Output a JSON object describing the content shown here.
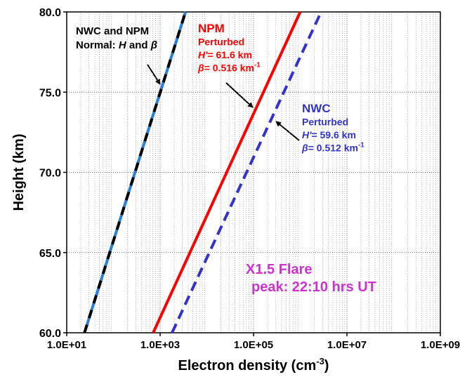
{
  "chart_data": {
    "type": "line",
    "x_scale": "log",
    "xlim": [
      10,
      1000000000
    ],
    "xticks": [
      {
        "value": 10,
        "label": "1.0E+01"
      },
      {
        "value": 1000,
        "label": "1.0E+03"
      },
      {
        "value": 100000,
        "label": "1.0E+05"
      },
      {
        "value": 10000000,
        "label": "1.0E+07"
      },
      {
        "value": 1000000000,
        "label": "1.0E+09"
      }
    ],
    "ylim": [
      60,
      80
    ],
    "yticks": [
      {
        "value": 60,
        "label": "60.0"
      },
      {
        "value": 65,
        "label": "65.0"
      },
      {
        "value": 70,
        "label": "70.0"
      },
      {
        "value": 75,
        "label": "75.0"
      },
      {
        "value": 80,
        "label": "80.0"
      }
    ],
    "grid": true,
    "minor_grid": true,
    "ylabel": "Height (km)",
    "xlabel": [
      {
        "text": "Electron density (cm"
      },
      {
        "text": "-3",
        "sup": true
      },
      {
        "text": ")"
      }
    ],
    "series": [
      {
        "color": "#2a7fd4",
        "dash_color": "#000000",
        "x": [
          24,
          3500
        ],
        "values": [
          60,
          80
        ]
      },
      {
        "color": "#ff0000",
        "x": [
          710,
          1000000
        ],
        "values": [
          60,
          80
        ]
      },
      {
        "color": "#3333cc",
        "dashed": true,
        "x": [
          1800,
          2800000
        ],
        "values": [
          60,
          80
        ]
      }
    ],
    "annotations": [
      {
        "color": "#000000",
        "lines": [
          [
            {
              "text": "NWC and NPM"
            }
          ],
          [
            {
              "text": "Normal: "
            },
            {
              "text": "H",
              "italic": true
            },
            {
              "text": " and "
            },
            {
              "text": "β",
              "italic": true
            }
          ]
        ]
      },
      {
        "color": "#ff0000",
        "lines": [
          [
            {
              "text": "NPM"
            }
          ],
          [
            {
              "text": "Perturbed"
            }
          ],
          [
            {
              "text": "H'",
              "italic": true
            },
            {
              "text": "= 61.6 km"
            }
          ],
          [
            {
              "text": "β",
              "italic": true
            },
            {
              "text": "= 0.516 km"
            },
            {
              "text": "-1",
              "sup": true
            }
          ]
        ]
      },
      {
        "color": "#3333cc",
        "lines": [
          [
            {
              "text": "NWC"
            }
          ],
          [
            {
              "text": "Perturbed"
            }
          ],
          [
            {
              "text": "H'",
              "italic": true
            },
            {
              "text": "= 59.6 km"
            }
          ],
          [
            {
              "text": "β",
              "italic": true
            },
            {
              "text": "= 0.512 km"
            },
            {
              "text": "-1",
              "sup": true
            }
          ]
        ]
      },
      {
        "color": "#cc33cc",
        "lines": [
          [
            {
              "text": "X1.5 Flare"
            }
          ],
          [
            {
              "text": "peak: 22:10 hrs UT"
            }
          ]
        ]
      }
    ]
  }
}
